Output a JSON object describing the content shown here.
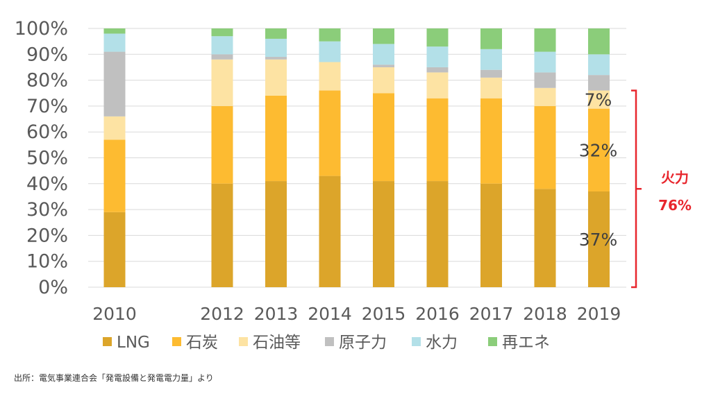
{
  "chart_data": {
    "type": "bar",
    "stacked": true,
    "percent": true,
    "categories": [
      "2010",
      "2012",
      "2013",
      "2014",
      "2015",
      "2016",
      "2017",
      "2018",
      "2019"
    ],
    "category_slots": [
      0,
      2,
      3,
      4,
      5,
      6,
      7,
      8,
      9
    ],
    "series": [
      {
        "name": "LNG",
        "color": "#dca52a",
        "values": [
          29,
          40,
          41,
          43,
          41,
          41,
          40,
          38,
          37
        ]
      },
      {
        "name": "石炭",
        "color": "#fdbb31",
        "values": [
          28,
          30,
          33,
          33,
          34,
          32,
          33,
          32,
          32
        ]
      },
      {
        "name": "石油等",
        "color": "#fde3a3",
        "values": [
          9,
          18,
          14,
          11,
          10,
          10,
          8,
          7,
          7
        ]
      },
      {
        "name": "原子力",
        "color": "#c0c0c0",
        "values": [
          25,
          2,
          1,
          0,
          1,
          2,
          3,
          6,
          6
        ]
      },
      {
        "name": "水力",
        "color": "#b3e0e8",
        "values": [
          7,
          7,
          7,
          8,
          8,
          8,
          8,
          8,
          8
        ]
      },
      {
        "name": "再エネ",
        "color": "#8bcd7a",
        "values": [
          2,
          3,
          4,
          5,
          6,
          7,
          8,
          9,
          10
        ]
      }
    ],
    "ylim": [
      0,
      100
    ],
    "yticks": [
      "0%",
      "10%",
      "20%",
      "30%",
      "40%",
      "50%",
      "60%",
      "70%",
      "80%",
      "90%",
      "100%"
    ],
    "grid": true,
    "legend_position": "bottom",
    "data_labels": [
      {
        "category": "2019",
        "series": "LNG",
        "text": "37%"
      },
      {
        "category": "2019",
        "series": "石炭",
        "text": "32%"
      },
      {
        "category": "2019",
        "series": "石油等",
        "text": "7%"
      }
    ],
    "annotation": {
      "line1": "火力",
      "line2": "76%",
      "color": "#e8262d"
    }
  },
  "source_note": "出所：電気事業連合会「発電設備と発電電力量」より"
}
